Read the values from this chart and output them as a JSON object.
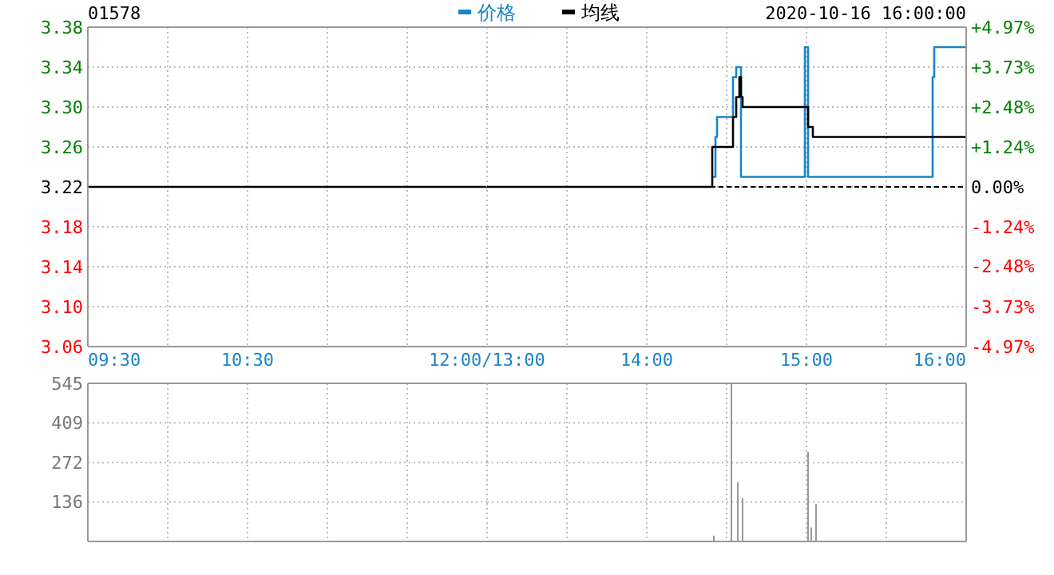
{
  "chart_data": [
    {
      "type": "step",
      "title": "01578",
      "xlim": [
        9.5,
        12
      ],
      "xticks": [
        {
          "value": 9.5,
          "label": "09:30"
        },
        {
          "value": 10,
          "label": null
        },
        {
          "value": 10.5,
          "label": "10:30"
        },
        {
          "value": 11,
          "label": null
        },
        {
          "value": 11.5,
          "label": null
        },
        {
          "value": 12,
          "label": "12:00/13:00"
        }
      ],
      "ylim": [
        3.06,
        3.38
      ],
      "yticks": [
        {
          "value": 3.06,
          "label": "3.06"
        },
        {
          "value": 3.1,
          "label": "3.10"
        },
        {
          "value": 3.14,
          "label": "3.14"
        },
        {
          "value": 3.18,
          "label": "3.18"
        },
        {
          "value": 3.22,
          "label": "3.22"
        },
        {
          "value": 3.26,
          "label": "3.26"
        },
        {
          "value": 3.3,
          "label": "3.30"
        },
        {
          "value": 3.34,
          "label": "3.34"
        },
        {
          "value": 3.38,
          "label": "3.38"
        }
      ],
      "grid": true,
      "series": [
        {
          "color": "#000000",
          "x": [
            9.5,
            12
          ],
          "values": [
            3.22,
            3.22
          ]
        }
      ]
    },
    {
      "type": "step",
      "annotations": [
        "2020-10-16 16:00:00"
      ],
      "tick_labels": "x",
      "xlim": [
        13,
        16
      ],
      "xticks": [
        {
          "value": 13,
          "label": null
        },
        {
          "value": 13.5,
          "label": null
        },
        {
          "value": 14,
          "label": "14:00"
        },
        {
          "value": 14.5,
          "label": null
        },
        {
          "value": 15,
          "label": "15:00"
        },
        {
          "value": 15.5,
          "label": null
        },
        {
          "value": 16,
          "label": "16:00"
        }
      ],
      "ylim": [
        3.06,
        3.38
      ],
      "yticks": [
        3.06,
        3.1,
        3.14,
        3.18,
        3.22,
        3.26,
        3.3,
        3.34,
        3.38
      ],
      "y2lim": [
        -4.97,
        4.97
      ],
      "y2ticks": [
        {
          "value": -4.97,
          "label": "-4.97%"
        },
        {
          "value": -3.73,
          "label": "-3.73%"
        },
        {
          "value": -2.48,
          "label": "-2.48%"
        },
        {
          "value": -1.24,
          "label": "-1.24%"
        },
        {
          "value": 0,
          "label": "0.00%"
        },
        {
          "value": 1.24,
          "label": "+1.24%"
        },
        {
          "value": 2.48,
          "label": "+2.48%"
        },
        {
          "value": 3.73,
          "label": "+3.73%"
        },
        {
          "value": 4.97,
          "label": "+4.97%"
        }
      ],
      "grid": true,
      "legend": "top",
      "ref_lines": [
        {
          "axis": "y",
          "value": 3.22,
          "color": "#000000",
          "line_style": "dashed"
        }
      ],
      "series": [
        {
          "name": "价格",
          "color": "#1a84c8",
          "x": [
            14.41,
            14.43,
            14.44,
            14.54,
            14.56,
            14.59,
            14.99,
            15.01,
            15.79,
            15.8,
            16
          ],
          "values": [
            3.23,
            3.27,
            3.29,
            3.33,
            3.34,
            3.23,
            3.36,
            3.23,
            3.33,
            3.36,
            3.36
          ]
        },
        {
          "name": "均线",
          "color": "#000000",
          "x": [
            13,
            14.41,
            14.54,
            14.56,
            14.58,
            14.59,
            14.6,
            15.01,
            15.04,
            16
          ],
          "values": [
            3.22,
            3.26,
            3.29,
            3.31,
            3.33,
            3.31,
            3.3,
            3.28,
            3.27,
            3.27
          ]
        }
      ]
    },
    {
      "type": "bar",
      "color": "#999999",
      "tick_labels": "y",
      "grid": true,
      "xlim": [
        9.5,
        12
      ],
      "xticks": [
        {
          "value": 9.5,
          "label": null
        },
        {
          "value": 10,
          "label": null
        },
        {
          "value": 10.5,
          "label": null
        },
        {
          "value": 11,
          "label": null
        },
        {
          "value": 11.5,
          "label": null
        },
        {
          "value": 12,
          "label": null
        }
      ],
      "ylim": [
        0,
        545
      ],
      "yticks": [
        {
          "value": 0,
          "label": null
        },
        {
          "value": 136,
          "label": "136"
        },
        {
          "value": 272,
          "label": "272"
        },
        {
          "value": 409,
          "label": "409"
        },
        {
          "value": 545,
          "label": "545"
        }
      ],
      "legend": false
    },
    {
      "type": "bar",
      "color": "#999999",
      "tick_labels": false,
      "grid": true,
      "xlim": [
        13,
        16
      ],
      "xticks": [
        {
          "value": 13,
          "label": null
        },
        {
          "value": 13.5,
          "label": null
        },
        {
          "value": 14,
          "label": null
        },
        {
          "value": 14.5,
          "label": null
        },
        {
          "value": 15,
          "label": null
        },
        {
          "value": 15.5,
          "label": null
        },
        {
          "value": 16,
          "label": null
        }
      ],
      "ylim": [
        0,
        545
      ],
      "yticks": [
        0,
        136,
        272,
        409,
        545
      ],
      "x": [
        14.42,
        14.53,
        14.57,
        14.6,
        15.01,
        15.03,
        15.06
      ],
      "values": [
        20,
        545,
        205,
        150,
        308,
        48,
        129
      ]
    }
  ]
}
